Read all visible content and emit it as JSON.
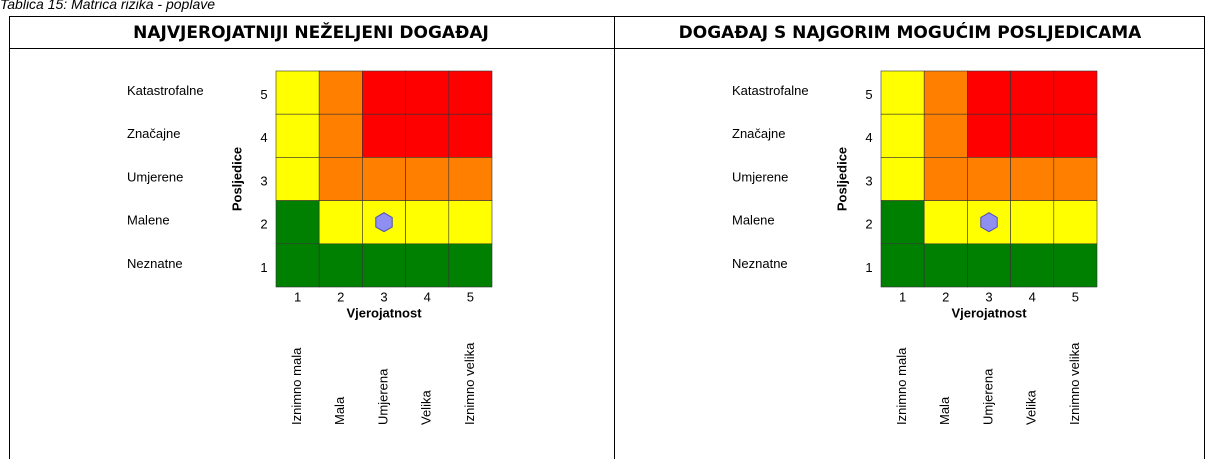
{
  "caption": "Tablica 15: Matrica rizika - poplave",
  "cell_colors": [
    [
      "#ffff00",
      "#ff8000",
      "#ff0000",
      "#ff0000",
      "#ff0000"
    ],
    [
      "#ffff00",
      "#ff8000",
      "#ff0000",
      "#ff0000",
      "#ff0000"
    ],
    [
      "#ffff00",
      "#ff8000",
      "#ff8000",
      "#ff8000",
      "#ff8000"
    ],
    [
      "#008000",
      "#ffff00",
      "#ffff00",
      "#ffff00",
      "#ffff00"
    ],
    [
      "#008000",
      "#008000",
      "#008000",
      "#008000",
      "#008000"
    ]
  ],
  "panels": [
    {
      "header": "NAJVJEROJATNIJI NEŽELJENI DOGAĐAJ",
      "y_axis": "Posljedice",
      "x_axis": "Vjerojatnost",
      "y_categories": [
        "Neznatne",
        "Malene",
        "Umjerene",
        "Značajne",
        "Katastrofalne"
      ],
      "y_ticks": [
        1,
        2,
        3,
        4,
        5
      ],
      "x_categories": [
        "Iznimno mala",
        "Mala",
        "Umjerena",
        "Velika",
        "Iznimno velika"
      ],
      "x_ticks": [
        1,
        2,
        3,
        4,
        5
      ],
      "marker": {
        "x": 3,
        "y": 2
      }
    },
    {
      "header": "DOGAĐAJ S NAJGORIM MOGUĆIM POSLJEDICAMA",
      "y_axis": "Posljedice",
      "x_axis": "Vjerojatnost",
      "y_categories": [
        "Neznatne",
        "Malene",
        "Umjerene",
        "Značajne",
        "Katastrofalne"
      ],
      "y_ticks": [
        1,
        2,
        3,
        4,
        5
      ],
      "x_categories": [
        "Iznimno mala",
        "Mala",
        "Umjerena",
        "Velika",
        "Iznimno velika"
      ],
      "x_ticks": [
        1,
        2,
        3,
        4,
        5
      ],
      "marker": {
        "x": 3,
        "y": 2
      }
    }
  ]
}
